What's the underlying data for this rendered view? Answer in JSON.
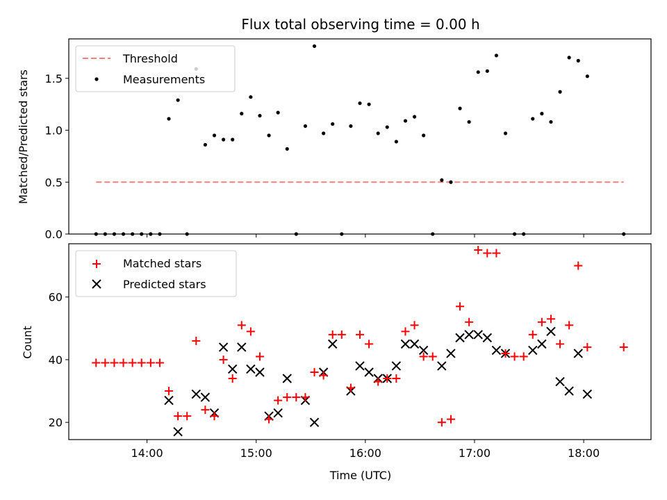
{
  "chart_data": [
    {
      "type": "scatter",
      "title": "Flux total observing time = 0.00 h",
      "xlabel": "",
      "ylabel": "Matched/Predicted stars",
      "ylim": [
        0,
        1.88
      ],
      "yticks": [
        "0.0",
        "0.5",
        "1.0",
        "1.5"
      ],
      "ytick_values": [
        0,
        0.5,
        1.0,
        1.5
      ],
      "grid": false,
      "legend_position": "upper-left",
      "series": [
        {
          "name": "Threshold",
          "kind": "dashed-line",
          "color": "#ff7f7f",
          "x": [
            "13:32",
            "18:22"
          ],
          "y": [
            0.5,
            0.5
          ]
        },
        {
          "name": "Measurements",
          "kind": "dots",
          "color": "#000000",
          "points": [
            [
              "13:32",
              0
            ],
            [
              "13:37",
              0
            ],
            [
              "13:42",
              0
            ],
            [
              "13:47",
              0
            ],
            [
              "13:52",
              0
            ],
            [
              "13:57",
              0
            ],
            [
              "14:02",
              0
            ],
            [
              "14:07",
              0
            ],
            [
              "14:12",
              1.11
            ],
            [
              "14:17",
              1.29
            ],
            [
              "14:22",
              0
            ],
            [
              "14:27",
              1.59
            ],
            [
              "14:32",
              0.86
            ],
            [
              "14:37",
              0.95
            ],
            [
              "14:42",
              0.91
            ],
            [
              "14:47",
              0.91
            ],
            [
              "14:52",
              1.16
            ],
            [
              "14:57",
              1.32
            ],
            [
              "15:02",
              1.14
            ],
            [
              "15:07",
              0.95
            ],
            [
              "15:12",
              1.17
            ],
            [
              "15:17",
              0.82
            ],
            [
              "15:22",
              0
            ],
            [
              "15:27",
              1.04
            ],
            [
              "15:32",
              1.81
            ],
            [
              "15:37",
              0.97
            ],
            [
              "15:42",
              1.06
            ],
            [
              "15:47",
              0
            ],
            [
              "15:52",
              1.04
            ],
            [
              "15:57",
              1.26
            ],
            [
              "16:02",
              1.25
            ],
            [
              "16:07",
              0.97
            ],
            [
              "16:12",
              1.03
            ],
            [
              "16:17",
              0.89
            ],
            [
              "16:22",
              1.09
            ],
            [
              "16:27",
              1.13
            ],
            [
              "16:32",
              0.95
            ],
            [
              "16:37",
              0
            ],
            [
              "16:42",
              0.52
            ],
            [
              "16:47",
              0.5
            ],
            [
              "16:52",
              1.21
            ],
            [
              "16:57",
              1.08
            ],
            [
              "17:02",
              1.56
            ],
            [
              "17:07",
              1.57
            ],
            [
              "17:12",
              1.72
            ],
            [
              "17:17",
              0.97
            ],
            [
              "17:22",
              0
            ],
            [
              "17:27",
              0
            ],
            [
              "17:32",
              1.11
            ],
            [
              "17:37",
              1.16
            ],
            [
              "17:42",
              1.08
            ],
            [
              "17:47",
              1.37
            ],
            [
              "17:52",
              1.7
            ],
            [
              "17:57",
              1.67
            ],
            [
              "18:02",
              1.52
            ],
            [
              "18:22",
              0
            ]
          ]
        }
      ]
    },
    {
      "type": "scatter",
      "title": "",
      "xlabel": "Time (UTC)",
      "ylabel": "Count",
      "ylim": [
        14.5,
        77
      ],
      "yticks": [
        "20",
        "40",
        "60"
      ],
      "ytick_values": [
        20,
        40,
        60
      ],
      "xlim": [
        "13:17",
        "18:37"
      ],
      "xticks": [
        "14:00",
        "15:00",
        "16:00",
        "17:00",
        "18:00"
      ],
      "grid": false,
      "legend_position": "upper-left",
      "series": [
        {
          "name": "Matched stars",
          "marker": "+",
          "color": "#ff0000",
          "points": [
            [
              "13:32",
              39
            ],
            [
              "13:37",
              39
            ],
            [
              "13:42",
              39
            ],
            [
              "13:47",
              39
            ],
            [
              "13:52",
              39
            ],
            [
              "13:57",
              39
            ],
            [
              "14:02",
              39
            ],
            [
              "14:07",
              39
            ],
            [
              "14:12",
              30
            ],
            [
              "14:17",
              22
            ],
            [
              "14:22",
              22
            ],
            [
              "14:27",
              46
            ],
            [
              "14:32",
              24
            ],
            [
              "14:37",
              22
            ],
            [
              "14:42",
              40
            ],
            [
              "14:47",
              34
            ],
            [
              "14:52",
              51
            ],
            [
              "14:57",
              49
            ],
            [
              "15:02",
              41
            ],
            [
              "15:07",
              21
            ],
            [
              "15:12",
              27
            ],
            [
              "15:17",
              28
            ],
            [
              "15:22",
              28
            ],
            [
              "15:27",
              28
            ],
            [
              "15:32",
              36
            ],
            [
              "15:37",
              35
            ],
            [
              "15:42",
              48
            ],
            [
              "15:47",
              48
            ],
            [
              "15:52",
              31
            ],
            [
              "15:57",
              48
            ],
            [
              "16:02",
              45
            ],
            [
              "16:07",
              33
            ],
            [
              "16:12",
              34
            ],
            [
              "16:17",
              34
            ],
            [
              "16:22",
              49
            ],
            [
              "16:27",
              51
            ],
            [
              "16:32",
              41
            ],
            [
              "16:37",
              41
            ],
            [
              "16:42",
              20
            ],
            [
              "16:47",
              21
            ],
            [
              "16:52",
              57
            ],
            [
              "16:57",
              52
            ],
            [
              "17:02",
              75
            ],
            [
              "17:07",
              74
            ],
            [
              "17:12",
              74
            ],
            [
              "17:17",
              42
            ],
            [
              "17:22",
              41
            ],
            [
              "17:27",
              41
            ],
            [
              "17:32",
              48
            ],
            [
              "17:37",
              52
            ],
            [
              "17:42",
              53
            ],
            [
              "17:47",
              45
            ],
            [
              "17:52",
              51
            ],
            [
              "17:57",
              70
            ],
            [
              "18:02",
              44
            ],
            [
              "18:22",
              44
            ]
          ]
        },
        {
          "name": "Predicted stars",
          "marker": "x",
          "color": "#000000",
          "points": [
            [
              "14:12",
              27
            ],
            [
              "14:17",
              17
            ],
            [
              "14:27",
              29
            ],
            [
              "14:32",
              28
            ],
            [
              "14:37",
              23
            ],
            [
              "14:42",
              44
            ],
            [
              "14:47",
              37
            ],
            [
              "14:52",
              44
            ],
            [
              "14:57",
              37
            ],
            [
              "15:02",
              36
            ],
            [
              "15:07",
              22
            ],
            [
              "15:12",
              23
            ],
            [
              "15:17",
              34
            ],
            [
              "15:27",
              27
            ],
            [
              "15:32",
              20
            ],
            [
              "15:37",
              36
            ],
            [
              "15:42",
              45
            ],
            [
              "15:52",
              30
            ],
            [
              "15:57",
              38
            ],
            [
              "16:02",
              36
            ],
            [
              "16:07",
              34
            ],
            [
              "16:12",
              34
            ],
            [
              "16:17",
              38
            ],
            [
              "16:22",
              45
            ],
            [
              "16:27",
              45
            ],
            [
              "16:32",
              43
            ],
            [
              "16:42",
              38
            ],
            [
              "16:47",
              42
            ],
            [
              "16:52",
              47
            ],
            [
              "16:57",
              48
            ],
            [
              "17:02",
              48
            ],
            [
              "17:07",
              47
            ],
            [
              "17:12",
              43
            ],
            [
              "17:17",
              42
            ],
            [
              "17:32",
              43
            ],
            [
              "17:37",
              45
            ],
            [
              "17:42",
              49
            ],
            [
              "17:47",
              33
            ],
            [
              "17:52",
              30
            ],
            [
              "17:57",
              42
            ],
            [
              "18:02",
              29
            ]
          ]
        }
      ]
    }
  ]
}
